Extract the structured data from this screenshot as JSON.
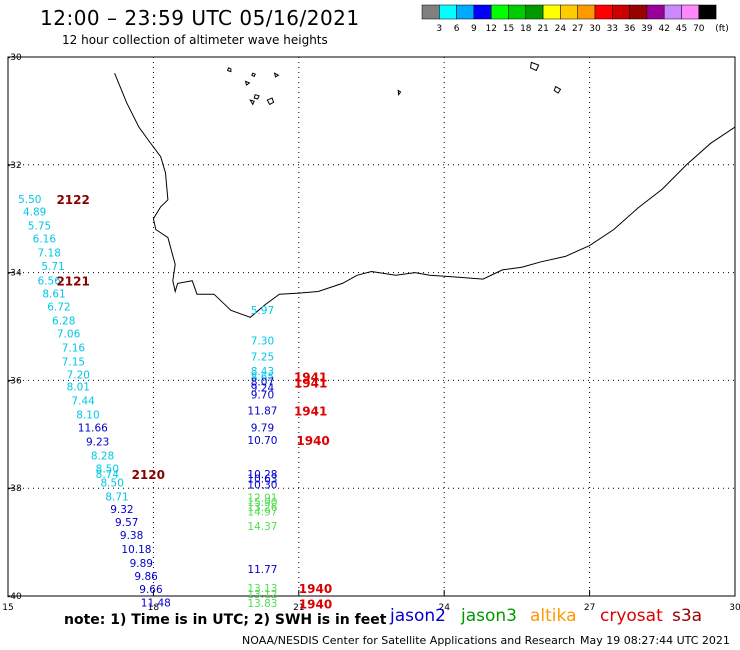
{
  "header": {
    "title": "12:00 – 23:59 UTC 05/16/2021",
    "subtitle": "12 hour collection of altimeter wave heights"
  },
  "colorbar": {
    "unit": "(ft)",
    "bins": [
      {
        "color": "#808080",
        "label": "3"
      },
      {
        "color": "#00ffff",
        "label": "6"
      },
      {
        "color": "#00aaff",
        "label": "9"
      },
      {
        "color": "#0000ff",
        "label": "12"
      },
      {
        "color": "#00ff00",
        "label": "15"
      },
      {
        "color": "#00cc00",
        "label": "18"
      },
      {
        "color": "#009900",
        "label": "21"
      },
      {
        "color": "#ffff00",
        "label": "24"
      },
      {
        "color": "#ffcc00",
        "label": "27"
      },
      {
        "color": "#ff9900",
        "label": "30"
      },
      {
        "color": "#ff0000",
        "label": "33"
      },
      {
        "color": "#cc0000",
        "label": "36"
      },
      {
        "color": "#990000",
        "label": "39"
      },
      {
        "color": "#990099",
        "label": "42"
      },
      {
        "color": "#cc88ff",
        "label": "45"
      },
      {
        "color": "#ff88ff",
        "label": "70"
      },
      {
        "color": "#000000",
        "label": ""
      }
    ]
  },
  "axes": {
    "lon_ticks": [
      "15",
      "18",
      "21",
      "24",
      "27",
      "30"
    ],
    "lat_ticks": [
      "-30",
      "-32",
      "-34",
      "-36",
      "-38",
      "-40"
    ],
    "lon_range": [
      15,
      30
    ],
    "lat_range": [
      -40,
      -30
    ]
  },
  "pass_colors": {
    "cyan": "#00c8e6",
    "blue": "#0000cc",
    "green": "#55dd55",
    "red": "#dd0000",
    "darkred": "#880000"
  },
  "observations": [
    {
      "lon": 15.45,
      "lat": -32.63,
      "value": "5.50",
      "color": "cyan"
    },
    {
      "lon": 15.55,
      "lat": -32.87,
      "value": "4.89",
      "color": "cyan"
    },
    {
      "lon": 15.65,
      "lat": -33.13,
      "value": "5.75",
      "color": "cyan"
    },
    {
      "lon": 15.75,
      "lat": -33.37,
      "value": "6.16",
      "color": "cyan"
    },
    {
      "lon": 15.85,
      "lat": -33.63,
      "value": "7.18",
      "color": "cyan"
    },
    {
      "lon": 15.93,
      "lat": -33.88,
      "value": "5.71",
      "color": "cyan"
    },
    {
      "lon": 15.85,
      "lat": -34.15,
      "value": "6.56",
      "color": "cyan"
    },
    {
      "lon": 15.95,
      "lat": -34.39,
      "value": "8.61",
      "color": "cyan"
    },
    {
      "lon": 16.05,
      "lat": -34.63,
      "value": "6.72",
      "color": "cyan"
    },
    {
      "lon": 16.15,
      "lat": -34.89,
      "value": "6.28",
      "color": "cyan"
    },
    {
      "lon": 16.25,
      "lat": -35.13,
      "value": "7.06",
      "color": "cyan"
    },
    {
      "lon": 16.35,
      "lat": -35.39,
      "value": "7.16",
      "color": "cyan"
    },
    {
      "lon": 16.35,
      "lat": -35.65,
      "value": "7.15",
      "color": "cyan"
    },
    {
      "lon": 16.45,
      "lat": -35.89,
      "value": "7.20",
      "color": "cyan"
    },
    {
      "lon": 16.45,
      "lat": -36.11,
      "value": "8.01",
      "color": "cyan"
    },
    {
      "lon": 16.55,
      "lat": -36.37,
      "value": "7.44",
      "color": "cyan"
    },
    {
      "lon": 16.65,
      "lat": -36.63,
      "value": "8.10",
      "color": "cyan"
    },
    {
      "lon": 16.75,
      "lat": -36.87,
      "value": "11.66",
      "color": "blue"
    },
    {
      "lon": 16.85,
      "lat": -37.13,
      "value": "9.23",
      "color": "blue"
    },
    {
      "lon": 16.95,
      "lat": -37.39,
      "value": "8.28",
      "color": "cyan"
    },
    {
      "lon": 17.05,
      "lat": -37.63,
      "value": "8.50",
      "color": "cyan"
    },
    {
      "lon": 17.05,
      "lat": -37.74,
      "value": "8.74",
      "color": "cyan"
    },
    {
      "lon": 17.15,
      "lat": -37.89,
      "value": "8.50",
      "color": "cyan"
    },
    {
      "lon": 17.25,
      "lat": -38.15,
      "value": "8.71",
      "color": "cyan"
    },
    {
      "lon": 17.35,
      "lat": -38.39,
      "value": "9.32",
      "color": "blue"
    },
    {
      "lon": 17.45,
      "lat": -38.63,
      "value": "9.57",
      "color": "blue"
    },
    {
      "lon": 17.55,
      "lat": -38.87,
      "value": "9.38",
      "color": "blue"
    },
    {
      "lon": 17.65,
      "lat": -39.13,
      "value": "10.18",
      "color": "blue"
    },
    {
      "lon": 17.75,
      "lat": -39.39,
      "value": "9.89",
      "color": "blue"
    },
    {
      "lon": 17.85,
      "lat": -39.63,
      "value": "9.86",
      "color": "blue"
    },
    {
      "lon": 17.95,
      "lat": -39.87,
      "value": "9.66",
      "color": "blue"
    },
    {
      "lon": 18.05,
      "lat": -40.12,
      "value": "11.48",
      "color": "blue"
    },
    {
      "lon": 20.25,
      "lat": -34.69,
      "value": "5.97",
      "color": "cyan"
    },
    {
      "lon": 20.25,
      "lat": -35.26,
      "value": "7.30",
      "color": "cyan"
    },
    {
      "lon": 20.25,
      "lat": -35.56,
      "value": "7.25",
      "color": "cyan"
    },
    {
      "lon": 20.25,
      "lat": -35.83,
      "value": "8.43",
      "color": "cyan"
    },
    {
      "lon": 20.25,
      "lat": -35.93,
      "value": "8.65",
      "color": "cyan"
    },
    {
      "lon": 20.25,
      "lat": -36.02,
      "value": "8.07",
      "color": "blue"
    },
    {
      "lon": 20.25,
      "lat": -36.13,
      "value": "9.24",
      "color": "blue"
    },
    {
      "lon": 20.25,
      "lat": -36.26,
      "value": "9.70",
      "color": "blue"
    },
    {
      "lon": 20.25,
      "lat": -36.56,
      "value": "11.87",
      "color": "blue"
    },
    {
      "lon": 20.25,
      "lat": -36.87,
      "value": "9.79",
      "color": "blue"
    },
    {
      "lon": 20.25,
      "lat": -37.11,
      "value": "10.70",
      "color": "blue"
    },
    {
      "lon": 20.25,
      "lat": -37.74,
      "value": "10.28",
      "color": "blue"
    },
    {
      "lon": 20.25,
      "lat": -37.82,
      "value": "10.63",
      "color": "blue"
    },
    {
      "lon": 20.25,
      "lat": -37.93,
      "value": "10.30",
      "color": "blue"
    },
    {
      "lon": 20.25,
      "lat": -38.17,
      "value": "12.91",
      "color": "green"
    },
    {
      "lon": 20.25,
      "lat": -38.26,
      "value": "15.90",
      "color": "green"
    },
    {
      "lon": 20.25,
      "lat": -38.35,
      "value": "13.26",
      "color": "green"
    },
    {
      "lon": 20.25,
      "lat": -38.43,
      "value": "14.97",
      "color": "green"
    },
    {
      "lon": 20.25,
      "lat": -38.7,
      "value": "14.37",
      "color": "green"
    },
    {
      "lon": 20.25,
      "lat": -39.5,
      "value": "11.77",
      "color": "blue"
    },
    {
      "lon": 20.25,
      "lat": -39.85,
      "value": "13.13",
      "color": "green"
    },
    {
      "lon": 20.25,
      "lat": -39.96,
      "value": "13.12",
      "color": "green"
    },
    {
      "lon": 20.25,
      "lat": -40.13,
      "value": "13.83",
      "color": "green"
    }
  ],
  "time_tags": [
    {
      "lon": 16.0,
      "lat": -32.63,
      "text": "2122",
      "color": "darkred"
    },
    {
      "lon": 16.0,
      "lat": -34.15,
      "text": "2121",
      "color": "darkred"
    },
    {
      "lon": 17.55,
      "lat": -37.74,
      "text": "2120",
      "color": "darkred"
    },
    {
      "lon": 20.9,
      "lat": -35.93,
      "text": "1941",
      "color": "red"
    },
    {
      "lon": 20.9,
      "lat": -36.04,
      "text": "1941",
      "color": "red"
    },
    {
      "lon": 20.9,
      "lat": -36.56,
      "text": "1941",
      "color": "red"
    },
    {
      "lon": 20.95,
      "lat": -37.11,
      "text": "1940",
      "color": "red"
    },
    {
      "lon": 21.0,
      "lat": -39.85,
      "text": "1940",
      "color": "red"
    },
    {
      "lon": 21.0,
      "lat": -40.14,
      "text": "1940",
      "color": "red"
    }
  ],
  "coastline": [
    [
      17.2,
      -30.3
    ],
    [
      17.45,
      -30.85
    ],
    [
      17.7,
      -31.3
    ],
    [
      17.9,
      -31.55
    ],
    [
      18.15,
      -31.85
    ],
    [
      18.25,
      -32.15
    ],
    [
      18.3,
      -32.65
    ],
    [
      18.15,
      -32.78
    ],
    [
      18.0,
      -33.0
    ],
    [
      18.05,
      -33.2
    ],
    [
      18.3,
      -33.35
    ],
    [
      18.45,
      -33.85
    ],
    [
      18.4,
      -34.15
    ],
    [
      18.45,
      -34.35
    ],
    [
      18.5,
      -34.2
    ],
    [
      18.8,
      -34.15
    ],
    [
      18.9,
      -34.4
    ],
    [
      19.25,
      -34.4
    ],
    [
      19.6,
      -34.7
    ],
    [
      20.0,
      -34.83
    ],
    [
      20.3,
      -34.6
    ],
    [
      20.6,
      -34.4
    ],
    [
      21.0,
      -34.38
    ],
    [
      21.4,
      -34.35
    ],
    [
      21.9,
      -34.2
    ],
    [
      22.2,
      -34.05
    ],
    [
      22.5,
      -33.98
    ],
    [
      23.0,
      -34.05
    ],
    [
      23.4,
      -34.0
    ],
    [
      23.7,
      -34.05
    ],
    [
      24.2,
      -34.08
    ],
    [
      24.8,
      -34.12
    ],
    [
      25.2,
      -33.95
    ],
    [
      25.6,
      -33.9
    ],
    [
      26.0,
      -33.8
    ],
    [
      26.5,
      -33.7
    ],
    [
      27.0,
      -33.5
    ],
    [
      27.5,
      -33.2
    ],
    [
      28.0,
      -32.8
    ],
    [
      28.5,
      -32.45
    ],
    [
      29.0,
      -32.0
    ],
    [
      29.5,
      -31.6
    ],
    [
      30.0,
      -31.3
    ]
  ],
  "islands": [
    [
      [
        19.55,
        -30.2
      ],
      [
        19.6,
        -30.22
      ],
      [
        19.6,
        -30.27
      ],
      [
        19.53,
        -30.25
      ]
    ],
    [
      [
        20.05,
        -30.3
      ],
      [
        20.1,
        -30.32
      ],
      [
        20.08,
        -30.36
      ],
      [
        20.03,
        -30.34
      ]
    ],
    [
      [
        20.5,
        -30.3
      ],
      [
        20.58,
        -30.34
      ],
      [
        20.52,
        -30.37
      ]
    ],
    [
      [
        19.9,
        -30.45
      ],
      [
        19.98,
        -30.48
      ],
      [
        19.92,
        -30.52
      ]
    ],
    [
      [
        20.1,
        -30.7
      ],
      [
        20.18,
        -30.72
      ],
      [
        20.15,
        -30.78
      ],
      [
        20.08,
        -30.76
      ]
    ],
    [
      [
        20.35,
        -30.8
      ],
      [
        20.45,
        -30.76
      ],
      [
        20.48,
        -30.84
      ],
      [
        20.4,
        -30.88
      ]
    ],
    [
      [
        20.0,
        -30.8
      ],
      [
        20.08,
        -30.82
      ],
      [
        20.05,
        -30.88
      ]
    ],
    [
      [
        25.8,
        -30.1
      ],
      [
        25.95,
        -30.15
      ],
      [
        25.9,
        -30.25
      ],
      [
        25.78,
        -30.2
      ]
    ],
    [
      [
        23.05,
        -30.62
      ],
      [
        23.1,
        -30.65
      ],
      [
        23.06,
        -30.7
      ]
    ],
    [
      [
        26.3,
        -30.55
      ],
      [
        26.4,
        -30.6
      ],
      [
        26.35,
        -30.67
      ],
      [
        26.27,
        -30.62
      ]
    ]
  ]
}
